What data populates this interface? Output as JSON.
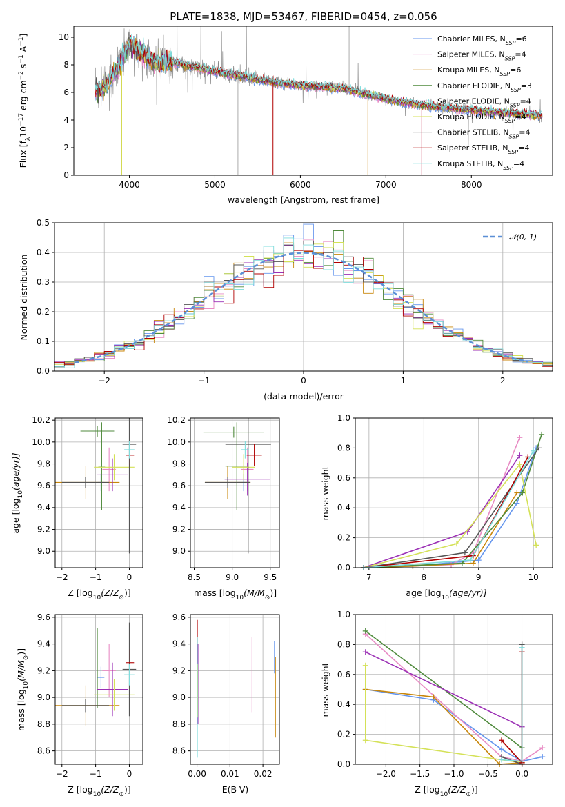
{
  "colors": {
    "series": [
      "#6495ed",
      "#e88bc4",
      "#c8860a",
      "#4f8a3c",
      "#9b30b5",
      "#d4e157",
      "#555555",
      "#b00000",
      "#7fdcdc"
    ],
    "observed": "#888888",
    "normal": "#5b8fd6"
  },
  "chart_data": [
    {
      "id": "spectrum",
      "type": "line",
      "title": "PLATE=1838, MJD=53467, FIBERID=0454, z=0.056",
      "xlabel": "wavelength [Angstrom, rest frame]",
      "ylabel": "Flux [f",
      "ylabel_sub": "λ",
      "ylabel_rest": "10",
      "ylabel_sup": "−17",
      "ylabel_end": " erg cm",
      "ylabel_sup2": "−2",
      "ylabel_tail": " s",
      "ylabel_sup3": "−1",
      "ylabel_last": " A",
      "ylabel_sup4": "−1",
      "ylabel_close": "]",
      "xlim": [
        3350,
        8950
      ],
      "ylim": [
        0,
        10.8
      ],
      "xticks": [
        4000,
        5000,
        6000,
        7000,
        8000
      ],
      "yticks": [
        0,
        2,
        4,
        6,
        8,
        10
      ],
      "model_continuum": {
        "x": [
          3600,
          3700,
          3800,
          3900,
          3950,
          4000,
          4100,
          4200,
          4300,
          4500,
          4700,
          5000,
          5300,
          5600,
          6000,
          6500,
          7000,
          7400,
          7800,
          8200,
          8500,
          8800
        ],
        "y": [
          6.1,
          6.3,
          7.2,
          8.2,
          9.0,
          9.5,
          9.0,
          8.6,
          8.2,
          8.2,
          7.9,
          7.5,
          7.2,
          6.8,
          6.5,
          6.3,
          5.5,
          5.1,
          4.8,
          4.6,
          4.5,
          4.3
        ]
      },
      "legend": [
        {
          "name": "Chabrier MILES, N",
          "sub": "SSP",
          "n": "=6"
        },
        {
          "name": "Salpeter MILES, N",
          "sub": "SSP",
          "n": "=4"
        },
        {
          "name": "Kroupa MILES, N",
          "sub": "SSP",
          "n": "=6"
        },
        {
          "name": "Chabrier ELODIE, N",
          "sub": "SSP",
          "n": "=3"
        },
        {
          "name": "Salpeter ELODIE, N",
          "sub": "SSP",
          "n": "=4"
        },
        {
          "name": "Kroupa ELODIE, N",
          "sub": "SSP",
          "n": "=4"
        },
        {
          "name": "Chabrier STELIB, N",
          "sub": "SSP",
          "n": "=4"
        },
        {
          "name": "Salpeter STELIB, N",
          "sub": "SSP",
          "n": "=4"
        },
        {
          "name": "Kroupa STELIB, N",
          "sub": "SSP",
          "n": "=4"
        }
      ],
      "legend_position": "upper-right"
    },
    {
      "id": "residuals",
      "type": "line",
      "xlabel": "(data-model)/error",
      "ylabel": "Normed distribution",
      "xlim": [
        -2.5,
        2.5
      ],
      "ylim": [
        0,
        0.5
      ],
      "xticks": [
        -2,
        -1,
        0,
        1,
        2
      ],
      "xticklabels": [
        "−2",
        "−1",
        "0",
        "1",
        "2"
      ],
      "yticks": [
        0.0,
        0.1,
        0.2,
        0.3,
        0.4,
        0.5
      ],
      "yticklabels": [
        "0.0",
        "0.1",
        "0.2",
        "0.3",
        "0.4",
        "0.5"
      ],
      "bin_width": 0.1,
      "legend": [
        {
          "name": "𝒩(0, 1)"
        }
      ],
      "legend_position": "upper-right"
    },
    {
      "id": "age_vs_Z",
      "type": "scatter",
      "xlabel": "Z [log",
      "xlabel_sub": "10",
      "xlabel_rest": "(Z/Z",
      "xlabel_sub2": "⊙",
      "xlabel_end": ")]",
      "ylabel": "age  [log",
      "ylabel_sub": "10",
      "ylabel_rest": "(age/yr)]",
      "xlim": [
        -2.2,
        0.4
      ],
      "ylim": [
        8.85,
        10.22
      ],
      "xticks": [
        -2,
        -1,
        0
      ],
      "xticklabels": [
        "−2",
        "−1",
        "0"
      ],
      "yticks": [
        9.0,
        9.2,
        9.4,
        9.6,
        9.8,
        10.0,
        10.2
      ],
      "yticklabels": [
        "9.0",
        "9.2",
        "9.4",
        "9.6",
        "9.8",
        "10.0",
        "10.2"
      ],
      "points": [
        {
          "s": 0,
          "x": -0.84,
          "y": 9.63,
          "xerr": 0.1,
          "yerr": 0.08
        },
        {
          "s": 1,
          "x": -0.6,
          "y": 9.75,
          "xerr": 0.2,
          "yerr": 0.2
        },
        {
          "s": 2,
          "x": -1.29,
          "y": 9.63,
          "xerr": 1.0,
          "yerr": 0.15
        },
        {
          "s": 3,
          "x": -0.82,
          "y": 9.78,
          "xerr": 0.1,
          "yerr": 0.4
        },
        {
          "s": 4,
          "x": -0.5,
          "y": 9.7,
          "xerr": 0.45,
          "yerr": 0.15
        },
        {
          "s": 5,
          "x": -0.45,
          "y": 9.77,
          "xerr": 0.6,
          "yerr": 0.12
        },
        {
          "s": 6,
          "x": 0.0,
          "y": 9.98,
          "xerr": 0.2,
          "yerr": 1.0
        },
        {
          "s": 7,
          "x": 0.02,
          "y": 9.88,
          "xerr": 0.12,
          "yerr": 0.1
        },
        {
          "s": 8,
          "x": 0.0,
          "y": 9.93,
          "xerr": 0.15,
          "yerr": 0.08
        },
        {
          "s": 3,
          "x": -0.95,
          "y": 10.1,
          "xerr": 0.5,
          "yerr": 0.05
        },
        {
          "s": 6,
          "x": -1.3,
          "y": 9.63,
          "xerr": 0.7,
          "yerr": 0.05
        }
      ]
    },
    {
      "id": "age_vs_mass",
      "type": "scatter",
      "xlabel": "mass [log",
      "xlabel_sub": "10",
      "xlabel_rest": "(M/M",
      "xlabel_sub2": "⊙",
      "xlabel_end": ")]",
      "xlim": [
        8.45,
        9.62
      ],
      "ylim": [
        8.85,
        10.22
      ],
      "xticks": [
        8.5,
        9.0,
        9.5
      ],
      "xticklabels": [
        "8.5",
        "9.0",
        "9.5"
      ],
      "yticks": [
        9.0,
        9.2,
        9.4,
        9.6,
        9.8,
        10.0,
        10.2
      ],
      "yticklabels": [
        "9.0",
        "9.2",
        "9.4",
        "9.6",
        "9.8",
        "10.0",
        "10.2"
      ],
      "points": [
        {
          "s": 0,
          "x": 9.15,
          "y": 9.63,
          "xerr": 0.08,
          "yerr": 0.08
        },
        {
          "s": 1,
          "x": 9.2,
          "y": 9.75,
          "xerr": 0.08,
          "yerr": 0.2
        },
        {
          "s": 2,
          "x": 8.94,
          "y": 9.63,
          "xerr": 0.3,
          "yerr": 0.15
        },
        {
          "s": 3,
          "x": 9.06,
          "y": 9.78,
          "xerr": 0.15,
          "yerr": 0.4
        },
        {
          "s": 4,
          "x": 9.2,
          "y": 9.66,
          "xerr": 0.3,
          "yerr": 0.15
        },
        {
          "s": 5,
          "x": 9.15,
          "y": 9.77,
          "xerr": 0.15,
          "yerr": 0.12
        },
        {
          "s": 6,
          "x": 9.21,
          "y": 9.98,
          "xerr": 0.3,
          "yerr": 1.0
        },
        {
          "s": 7,
          "x": 9.29,
          "y": 9.88,
          "xerr": 0.1,
          "yerr": 0.1
        },
        {
          "s": 8,
          "x": 9.17,
          "y": 9.93,
          "xerr": 0.05,
          "yerr": 0.08
        },
        {
          "s": 3,
          "x": 9.02,
          "y": 10.09,
          "xerr": 0.4,
          "yerr": 0.05
        },
        {
          "s": 6,
          "x": 8.94,
          "y": 9.63,
          "xerr": 0.3,
          "yerr": 0.05
        }
      ]
    },
    {
      "id": "weight_vs_age",
      "type": "line",
      "xlabel": "age  [log",
      "xlabel_sub": "10",
      "xlabel_rest": "(age/yr)]",
      "ylabel": "mass weight",
      "xlim": [
        6.75,
        10.35
      ],
      "ylim": [
        0,
        1
      ],
      "xticks": [
        7,
        8,
        9,
        10
      ],
      "xticklabels": [
        "7",
        "8",
        "9",
        "10"
      ],
      "yticks": [
        0.0,
        0.2,
        0.4,
        0.6,
        0.8,
        1.0
      ],
      "yticklabels": [
        "0.0",
        "0.2",
        "0.4",
        "0.6",
        "0.8",
        "1.0"
      ],
      "series": [
        {
          "s": 0,
          "x": [
            6.9,
            7.8,
            9.0,
            9.7,
            10.05
          ],
          "y": [
            0.0,
            0.01,
            0.05,
            0.43,
            0.8
          ]
        },
        {
          "s": 1,
          "x": [
            6.9,
            8.5,
            8.9,
            9.75
          ],
          "y": [
            0.0,
            0.02,
            0.1,
            0.87
          ]
        },
        {
          "s": 2,
          "x": [
            6.9,
            7.8,
            8.9,
            9.7
          ],
          "y": [
            0.0,
            0.01,
            0.03,
            0.5
          ]
        },
        {
          "s": 3,
          "x": [
            6.9,
            8.7,
            9.8,
            10.15
          ],
          "y": [
            0.0,
            0.03,
            0.5,
            0.89
          ]
        },
        {
          "s": 4,
          "x": [
            6.9,
            8.8,
            9.75
          ],
          "y": [
            0.0,
            0.24,
            0.75
          ]
        },
        {
          "s": 5,
          "x": [
            6.9,
            8.6,
            9.75,
            10.05
          ],
          "y": [
            0.0,
            0.16,
            0.69,
            0.15
          ]
        },
        {
          "s": 6,
          "x": [
            6.9,
            8.75,
            10.1
          ],
          "y": [
            0.0,
            0.1,
            0.8
          ]
        },
        {
          "s": 7,
          "x": [
            6.9,
            8.9,
            9.9
          ],
          "y": [
            0.0,
            0.08,
            0.74
          ]
        },
        {
          "s": 8,
          "x": [
            6.9,
            8.85,
            10.0
          ],
          "y": [
            0.0,
            0.05,
            0.78
          ]
        }
      ]
    },
    {
      "id": "mass_vs_Z",
      "type": "scatter",
      "xlabel": "Z [log",
      "xlabel_sub": "10",
      "xlabel_rest": "(Z/Z",
      "xlabel_sub2": "⊙",
      "xlabel_end": ")]",
      "ylabel": "mass [log",
      "ylabel_sub": "10",
      "ylabel_rest": "(M/M",
      "ylabel_sub2": "⊙",
      "ylabel_end": ")]",
      "xlim": [
        -2.2,
        0.4
      ],
      "ylim": [
        8.5,
        9.62
      ],
      "xticks": [
        -2,
        -1,
        0
      ],
      "xticklabels": [
        "−2",
        "−1",
        "0"
      ],
      "yticks": [
        8.6,
        8.8,
        9.0,
        9.2,
        9.4,
        9.6
      ],
      "yticklabels": [
        "8.6",
        "8.8",
        "9.0",
        "9.2",
        "9.4",
        "9.6"
      ],
      "points": [
        {
          "s": 0,
          "x": -0.84,
          "y": 9.15,
          "xerr": 0.1,
          "yerr": 0.08
        },
        {
          "s": 1,
          "x": -0.6,
          "y": 9.2,
          "xerr": 0.2,
          "yerr": 0.2
        },
        {
          "s": 2,
          "x": -1.29,
          "y": 8.94,
          "xerr": 1.0,
          "yerr": 0.15
        },
        {
          "s": 3,
          "x": -0.95,
          "y": 9.22,
          "xerr": 0.5,
          "yerr": 0.3
        },
        {
          "s": 4,
          "x": -0.5,
          "y": 9.06,
          "xerr": 0.45,
          "yerr": 0.2
        },
        {
          "s": 5,
          "x": -0.45,
          "y": 9.02,
          "xerr": 0.6,
          "yerr": 0.12
        },
        {
          "s": 6,
          "x": 0.0,
          "y": 9.21,
          "xerr": 0.2,
          "yerr": 0.35
        },
        {
          "s": 7,
          "x": 0.02,
          "y": 9.26,
          "xerr": 0.12,
          "yerr": 0.1
        },
        {
          "s": 8,
          "x": 0.0,
          "y": 9.17,
          "xerr": 0.15,
          "yerr": 0.08
        },
        {
          "s": 6,
          "x": -1.3,
          "y": 8.94,
          "xerr": 0.7,
          "yerr": 0.05
        }
      ]
    },
    {
      "id": "mass_vs_EBV",
      "type": "scatter",
      "xlabel": "E(B-V)",
      "xlim": [
        -0.002,
        0.025
      ],
      "ylim": [
        8.5,
        9.62
      ],
      "xticks": [
        0.0,
        0.01,
        0.02
      ],
      "xticklabels": [
        "0.00",
        "0.01",
        "0.02"
      ],
      "yticks": [
        8.6,
        8.8,
        9.0,
        9.2,
        9.4,
        9.6
      ],
      "yticklabels": [
        "8.6",
        "8.8",
        "9.0",
        "9.2",
        "9.4",
        "9.6"
      ],
      "points": [
        {
          "s": 0,
          "x": 0.0002,
          "y": 9.15,
          "xerr": 0,
          "yerr": 0.25
        },
        {
          "s": 1,
          "x": 0.0167,
          "y": 9.17,
          "xerr": 0,
          "yerr": 0.28
        },
        {
          "s": 2,
          "x": 0.0238,
          "y": 9.0,
          "xerr": 0,
          "yerr": 0.3
        },
        {
          "s": 3,
          "x": 0.0,
          "y": 9.2,
          "xerr": 0,
          "yerr": 0.3
        },
        {
          "s": 4,
          "x": 0.0003,
          "y": 9.1,
          "xerr": 0,
          "yerr": 0.3
        },
        {
          "s": 5,
          "x": 0.0002,
          "y": 9.05,
          "xerr": 0,
          "yerr": 0.2
        },
        {
          "s": 6,
          "x": 0.0,
          "y": 9.1,
          "xerr": 0,
          "yerr": 0.4
        },
        {
          "s": 7,
          "x": 0.0001,
          "y": 9.42,
          "xerr": 0,
          "yerr": 0.16
        },
        {
          "s": 8,
          "x": 0.0001,
          "y": 9.0,
          "xerr": 0,
          "yerr": 0.45
        },
        {
          "s": 0,
          "x": 0.0235,
          "y": 9.3,
          "xerr": 0,
          "yerr": 0.12
        }
      ]
    },
    {
      "id": "weight_vs_Z",
      "type": "line",
      "xlabel": "Z [log",
      "xlabel_sub": "10",
      "xlabel_rest": "(Z/Z",
      "xlabel_sub2": "⊙",
      "xlabel_end": ")]",
      "ylabel": "mass weight",
      "xlim": [
        -2.45,
        0.45
      ],
      "ylim": [
        0,
        1
      ],
      "xticks": [
        -2.0,
        -1.5,
        -1.0,
        -0.5,
        0.0
      ],
      "xticklabels": [
        "−2.0",
        "−1.5",
        "−1.0",
        "−0.5",
        "0.0"
      ],
      "yticks": [
        0.0,
        0.2,
        0.4,
        0.6,
        0.8,
        1.0
      ],
      "yticklabels": [
        "0.0",
        "0.2",
        "0.4",
        "0.6",
        "0.8",
        "1.0"
      ],
      "series": [
        {
          "s": 0,
          "x": [
            -2.3,
            -1.3,
            -0.3,
            0.0,
            0.3
          ],
          "y": [
            0.5,
            0.43,
            0.1,
            0.02,
            0.05
          ]
        },
        {
          "s": 1,
          "x": [
            -2.3,
            -0.3,
            0.0,
            0.3
          ],
          "y": [
            0.87,
            0.05,
            0.02,
            0.11
          ]
        },
        {
          "s": 2,
          "x": [
            -2.3,
            -1.3,
            -0.33,
            0.0
          ],
          "y": [
            0.5,
            0.45,
            0.0,
            0.01
          ]
        },
        {
          "s": 3,
          "x": [
            -2.3,
            0.0
          ],
          "y": [
            0.89,
            0.11
          ]
        },
        {
          "s": 4,
          "x": [
            -2.3,
            0.0
          ],
          "y": [
            0.75,
            0.25
          ]
        },
        {
          "s": 5,
          "x": [
            -2.3,
            -2.3,
            0.0
          ],
          "y": [
            0.66,
            0.16,
            0.01
          ]
        },
        {
          "s": 6,
          "x": [
            -0.3,
            0.0,
            0.0
          ],
          "y": [
            0.05,
            0.0,
            0.8
          ]
        },
        {
          "s": 7,
          "x": [
            -0.3,
            0.0,
            0.0
          ],
          "y": [
            0.16,
            0.01,
            0.75
          ]
        },
        {
          "s": 8,
          "x": [
            -0.3,
            0.0,
            0.0
          ],
          "y": [
            0.03,
            0.02,
            0.78
          ]
        }
      ]
    }
  ]
}
